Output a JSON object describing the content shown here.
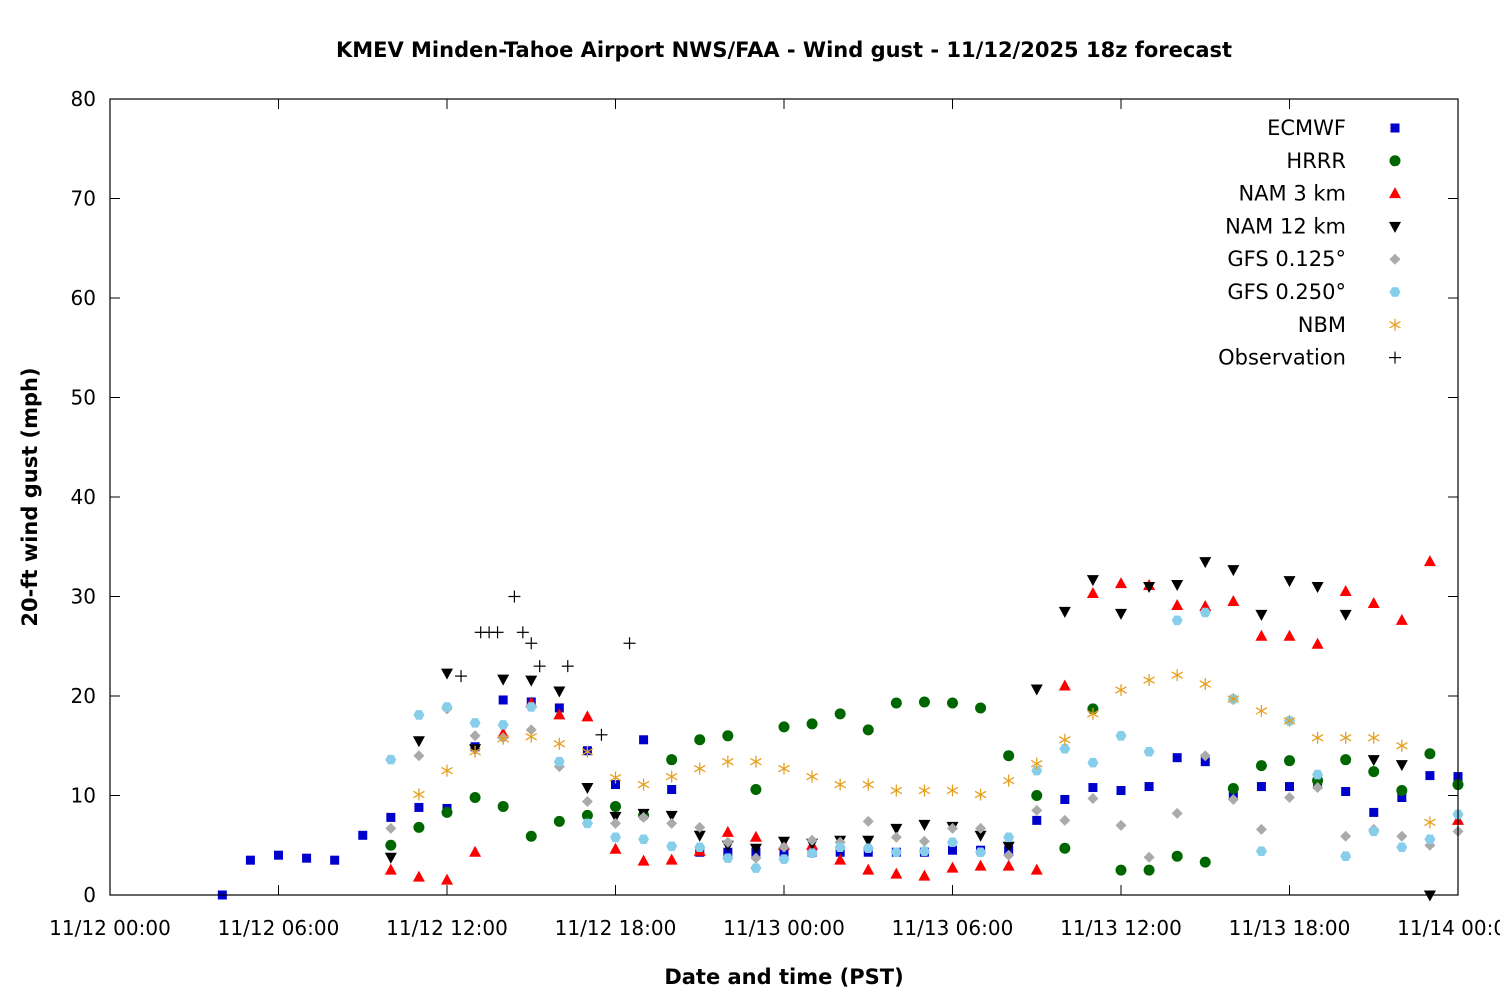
{
  "chart_data": {
    "type": "scatter",
    "title": "KMEV Minden-Tahoe Airport NWS/FAA - Wind gust - 11/12/2025 18z forecast",
    "xlabel": "Date and time (PST)",
    "ylabel": "20-ft wind gust (mph)",
    "xlim_hours": [
      0,
      48
    ],
    "ylim": [
      0,
      80
    ],
    "x_ticks": [
      {
        "hour": 0,
        "label": "11/12 00:00"
      },
      {
        "hour": 6,
        "label": "11/12 06:00"
      },
      {
        "hour": 12,
        "label": "11/12 12:00"
      },
      {
        "hour": 18,
        "label": "11/12 18:00"
      },
      {
        "hour": 24,
        "label": "11/13 00:00"
      },
      {
        "hour": 30,
        "label": "11/13 06:00"
      },
      {
        "hour": 36,
        "label": "11/13 12:00"
      },
      {
        "hour": 42,
        "label": "11/13 18:00"
      },
      {
        "hour": 48,
        "label": "11/14 00:00"
      }
    ],
    "y_ticks": [
      {
        "value": 0,
        "label": "0"
      },
      {
        "value": 10,
        "label": "10"
      },
      {
        "value": 20,
        "label": "20"
      },
      {
        "value": 30,
        "label": "30"
      },
      {
        "value": 40,
        "label": "40"
      },
      {
        "value": 50,
        "label": "50"
      },
      {
        "value": 60,
        "label": "60"
      },
      {
        "value": 70,
        "label": "70"
      },
      {
        "value": 80,
        "label": "80"
      }
    ],
    "legend_position": "top-right",
    "series": [
      {
        "name": "ECMWF",
        "marker": "square",
        "color": "#0000cc",
        "x": [
          4,
          5,
          6,
          7,
          8,
          9,
          10,
          11,
          12,
          13,
          14,
          15,
          16,
          17,
          18,
          19,
          20,
          21,
          22,
          23,
          24,
          25,
          26,
          27,
          28,
          29,
          30,
          31,
          32,
          33,
          34,
          35,
          36,
          37,
          38,
          39,
          40,
          41,
          42,
          43,
          44,
          45,
          46,
          47,
          48
        ],
        "y": [
          0,
          3.5,
          4,
          3.7,
          3.5,
          6,
          7.8,
          8.8,
          8.7,
          14.9,
          19.6,
          19.4,
          18.8,
          14.5,
          11.1,
          15.6,
          10.6,
          4.3,
          4.3,
          4.3,
          4.3,
          4.3,
          4.3,
          4.3,
          4.3,
          4.3,
          4.5,
          4.5,
          4.5,
          7.5,
          9.6,
          10.8,
          10.5,
          10.9,
          13.8,
          13.4,
          10.1,
          10.9,
          10.9,
          11.1,
          10.4,
          8.3,
          9.8,
          12.0,
          11.9
        ]
      },
      {
        "name": "HRRR",
        "marker": "circle",
        "color": "#006600",
        "x": [
          10,
          11,
          12,
          13,
          14,
          15,
          16,
          17,
          18,
          19,
          20,
          21,
          22,
          23,
          24,
          25,
          26,
          27,
          28,
          29,
          30,
          31,
          32,
          33,
          34,
          35,
          36,
          37,
          38,
          39,
          40,
          41,
          42,
          43,
          44,
          45,
          46,
          47,
          48
        ],
        "y": [
          5,
          6.8,
          8.3,
          9.8,
          8.9,
          5.9,
          7.4,
          8,
          8.9,
          8,
          13.6,
          15.6,
          16,
          10.6,
          16.9,
          17.2,
          18.2,
          16.6,
          19.3,
          19.4,
          19.3,
          18.8,
          14,
          10,
          4.7,
          18.7,
          2.5,
          2.5,
          3.9,
          3.3,
          10.7,
          13,
          13.5,
          11.5,
          13.6,
          12.4,
          10.5,
          14.2,
          11.1
        ]
      },
      {
        "name": "NAM 3 km",
        "marker": "triangle-up",
        "color": "#ff0000",
        "x": [
          10,
          11,
          12,
          13,
          14,
          15,
          16,
          17,
          18,
          19,
          20,
          21,
          22,
          23,
          24,
          25,
          26,
          27,
          28,
          29,
          30,
          31,
          32,
          33,
          34,
          35,
          36,
          37,
          38,
          39,
          40,
          41,
          42,
          43,
          44,
          45,
          46,
          47,
          48
        ],
        "y": [
          2.5,
          1.8,
          1.5,
          4.3,
          16.2,
          19.3,
          18.1,
          17.9,
          4.6,
          3.4,
          3.5,
          4.4,
          6.3,
          5.8,
          5,
          5,
          3.5,
          2.5,
          2.1,
          1.9,
          2.7,
          2.9,
          2.9,
          2.5,
          21,
          30.3,
          31.3,
          31.1,
          29.1,
          29,
          29.5,
          26,
          26,
          25.2,
          30.5,
          29.3,
          27.6,
          33.5,
          7.5
        ]
      },
      {
        "name": "NAM 12 km",
        "marker": "triangle-down",
        "color": "#000000",
        "x": [
          10,
          11,
          12,
          13,
          14,
          15,
          16,
          17,
          18,
          19,
          20,
          21,
          22,
          23,
          24,
          25,
          26,
          27,
          28,
          29,
          30,
          31,
          32,
          33,
          34,
          35,
          36,
          37,
          38,
          39,
          40,
          41,
          42,
          43,
          44,
          45,
          46,
          47
        ],
        "y": [
          3.8,
          15.5,
          22.3,
          14.7,
          21.7,
          21.6,
          20.5,
          10.8,
          7.9,
          8.2,
          8,
          6,
          5,
          4.7,
          5.4,
          5.2,
          5.5,
          5.5,
          6.7,
          7.1,
          6.9,
          6,
          4.9,
          20.7,
          28.5,
          31.7,
          28.3,
          31,
          31.2,
          33.5,
          32.7,
          28.2,
          31.6,
          31,
          28.2,
          13.6,
          13.1,
          0
        ]
      },
      {
        "name": "GFS 0.125°",
        "marker": "diamond",
        "color": "#aaaaaa",
        "x": [
          10,
          11,
          12,
          13,
          14,
          15,
          16,
          17,
          18,
          19,
          20,
          21,
          22,
          23,
          24,
          25,
          26,
          27,
          28,
          29,
          30,
          31,
          32,
          33,
          34,
          35,
          36,
          37,
          38,
          39,
          40,
          41,
          42,
          43,
          44,
          45,
          46,
          47,
          48
        ],
        "y": [
          6.7,
          14,
          18.7,
          16,
          15.8,
          16.6,
          12.9,
          9.4,
          7.2,
          7.8,
          7.2,
          6.8,
          5.3,
          3.7,
          4.8,
          5.5,
          5.3,
          7.4,
          5.8,
          5.4,
          6.7,
          6.7,
          4,
          8.5,
          7.5,
          9.7,
          7,
          3.8,
          8.2,
          14,
          9.6,
          6.6,
          9.8,
          10.8,
          5.9,
          6.6,
          5.9,
          5,
          6.4
        ]
      },
      {
        "name": "GFS 0.250°",
        "marker": "hexagon",
        "color": "#87ceeb",
        "x": [
          10,
          11,
          12,
          13,
          14,
          15,
          16,
          17,
          18,
          19,
          20,
          21,
          22,
          23,
          24,
          25,
          26,
          27,
          28,
          29,
          30,
          31,
          32,
          33,
          34,
          35,
          36,
          37,
          38,
          39,
          40,
          41,
          42,
          43,
          44,
          45,
          46,
          47,
          48
        ],
        "y": [
          13.6,
          18.1,
          18.9,
          17.3,
          17.1,
          18.9,
          13.4,
          7.2,
          5.8,
          5.6,
          4.9,
          4.8,
          3.7,
          2.7,
          3.6,
          4.2,
          4.8,
          4.7,
          4.3,
          4.4,
          5.3,
          4.3,
          5.8,
          12.5,
          14.7,
          13.3,
          16,
          14.4,
          27.6,
          28.4,
          19.7,
          4.4,
          17.5,
          12.1,
          3.9,
          6.4,
          4.8,
          5.6,
          8.1
        ]
      },
      {
        "name": "NBM",
        "marker": "asterisk",
        "color": "#e6a020",
        "x": [
          11,
          12,
          13,
          14,
          15,
          16,
          17,
          18,
          19,
          20,
          21,
          22,
          23,
          24,
          25,
          26,
          27,
          28,
          29,
          30,
          31,
          32,
          33,
          34,
          35,
          36,
          37,
          38,
          39,
          40,
          41,
          42,
          43,
          44,
          45,
          46,
          47
        ],
        "y": [
          10.1,
          12.5,
          14.4,
          15.7,
          15.9,
          15.2,
          14.4,
          11.8,
          11.1,
          11.9,
          12.7,
          13.4,
          13.4,
          12.7,
          11.9,
          11.1,
          11.1,
          10.5,
          10.5,
          10.5,
          10.1,
          11.5,
          13.2,
          15.6,
          18.2,
          20.6,
          21.6,
          22.1,
          21.2,
          19.7,
          18.5,
          17.5,
          15.8,
          15.8,
          15.8,
          15,
          7.3
        ]
      },
      {
        "name": "Observation",
        "marker": "plus",
        "color": "#000000",
        "x": [
          12.5,
          13.2,
          13.5,
          13.8,
          14.4,
          14.7,
          15,
          15.3,
          16.3,
          17.5,
          18.5
        ],
        "y": [
          22,
          26.4,
          26.4,
          26.4,
          30,
          26.4,
          25.3,
          23,
          23,
          16.1,
          25.3
        ]
      }
    ]
  }
}
